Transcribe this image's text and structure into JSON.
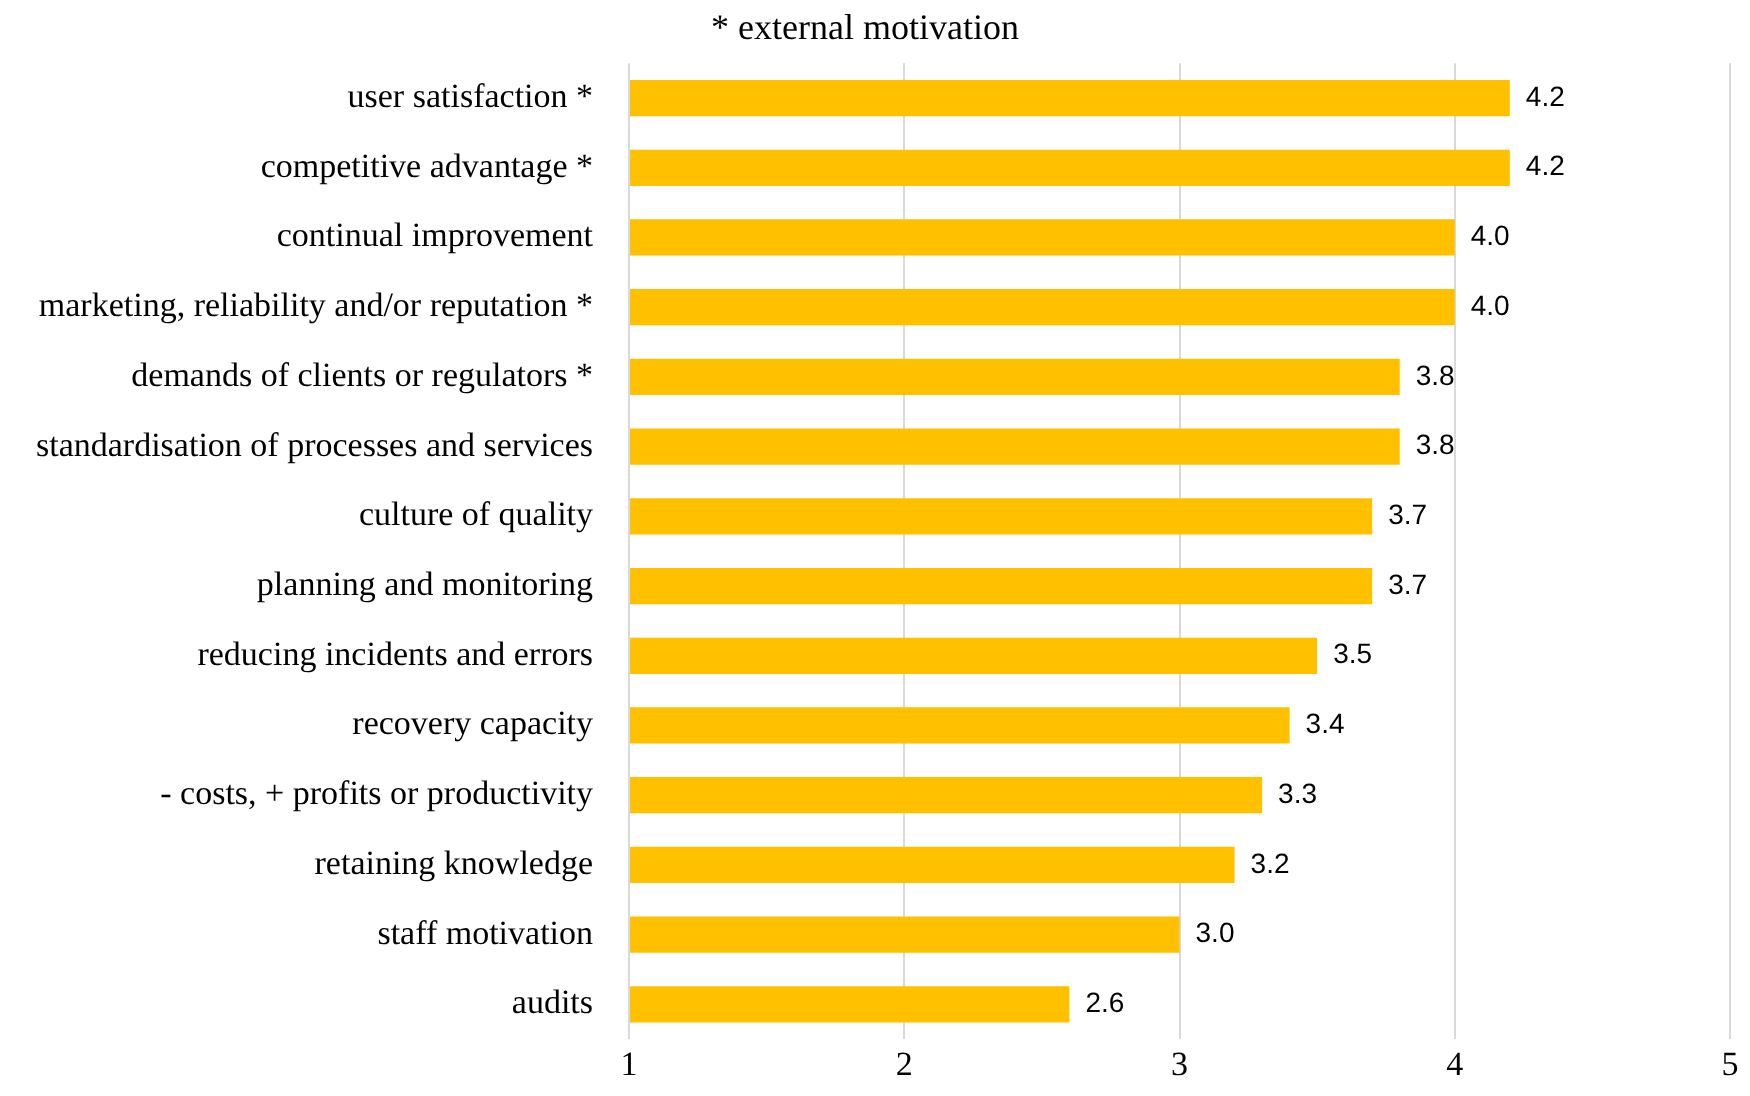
{
  "chart_data": {
    "type": "bar",
    "orientation": "horizontal",
    "title": "* external motivation",
    "categories": [
      "user satisfaction *",
      "competitive advantage *",
      "continual improvement",
      "marketing, reliability and/or reputation *",
      "demands of clients or regulators *",
      "standardisation of processes and services",
      "culture of quality",
      "planning and monitoring",
      "reducing incidents and errors",
      "recovery capacity",
      "- costs, + profits or productivity",
      "retaining knowledge",
      "staff motivation",
      "audits"
    ],
    "values": [
      4.2,
      4.2,
      4.0,
      4.0,
      3.8,
      3.8,
      3.7,
      3.7,
      3.5,
      3.4,
      3.3,
      3.2,
      3.0,
      2.6
    ],
    "value_labels": [
      "4.2",
      "4.2",
      "4.0",
      "4.0",
      "3.8",
      "3.8",
      "3.7",
      "3.7",
      "3.5",
      "3.4",
      "3.3",
      "3.2",
      "3.0",
      "2.6"
    ],
    "color": "#ffc000",
    "xlim": [
      1,
      5
    ],
    "xticks": [
      1,
      2,
      3,
      4,
      5
    ],
    "grid": "x",
    "legend": false
  }
}
